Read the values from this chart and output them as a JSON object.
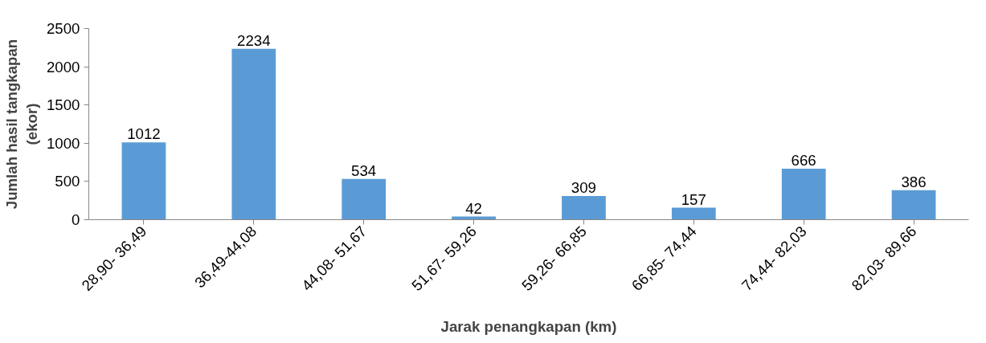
{
  "chart_data": {
    "type": "bar",
    "xlabel": "Jarak penangkapan (km)",
    "ylabel": "Jumlah hasil tangkapan (ekor)",
    "categories": [
      "28,90- 36,49",
      "36,49-44,08",
      "44,08- 51,67",
      "51,67- 59,26",
      "59,26- 66,85",
      "66,85- 74,44",
      "74,44- 82,03",
      "82,03- 89,66"
    ],
    "values": [
      1012,
      2234,
      534,
      42,
      309,
      157,
      666,
      386
    ],
    "color": "#5b9bd5",
    "ylim": [
      0,
      2500
    ],
    "yticks": [
      0,
      500,
      1000,
      1500,
      2000,
      2500
    ],
    "grid": false,
    "data_labels": true
  }
}
